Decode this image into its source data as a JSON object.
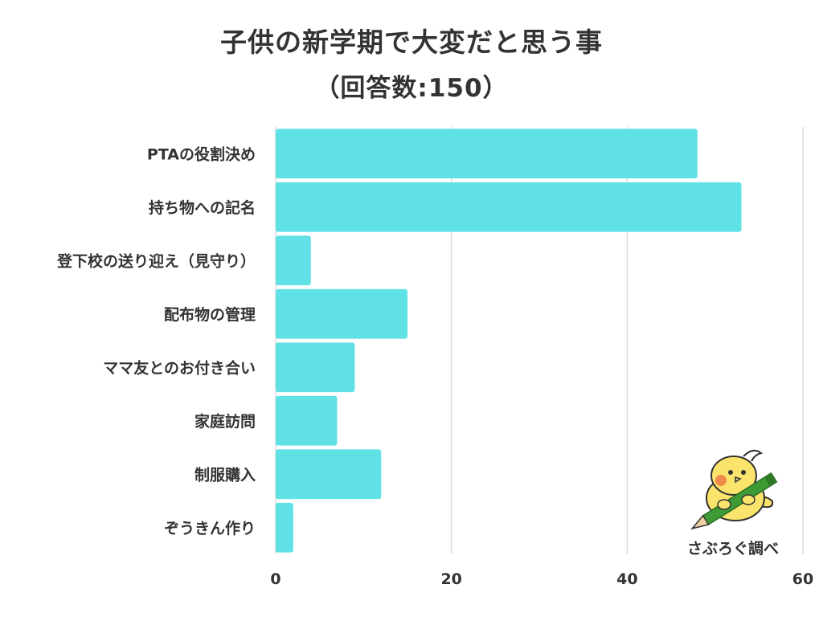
{
  "chart_data": {
    "type": "bar",
    "orientation": "horizontal",
    "title": "子供の新学期で大変だと思う事",
    "subtitle": "（回答数:150）",
    "categories": [
      "PTAの役割決め",
      "持ち物への記名",
      "登下校の送り迎え（見守り）",
      "配布物の管理",
      "ママ友とのお付き合い",
      "家庭訪問",
      "制服購入",
      "ぞうきん作り"
    ],
    "values": [
      48,
      53,
      4,
      15,
      9,
      7,
      12,
      2
    ],
    "xlim": [
      0,
      60
    ],
    "xticks": [
      "0",
      "20",
      "40",
      "60"
    ],
    "grid": true,
    "legend": "none"
  },
  "credit": "さぶろぐ調べ",
  "colors": {
    "bar": "#5fe1e6",
    "text": "#333333",
    "grid": "#d9d9d9",
    "mascot_body": "#fbe46b",
    "mascot_cheek": "#f08a4b",
    "pencil": "#3e9a34"
  },
  "icons": {
    "mascot": "bird-with-pencil-icon"
  }
}
